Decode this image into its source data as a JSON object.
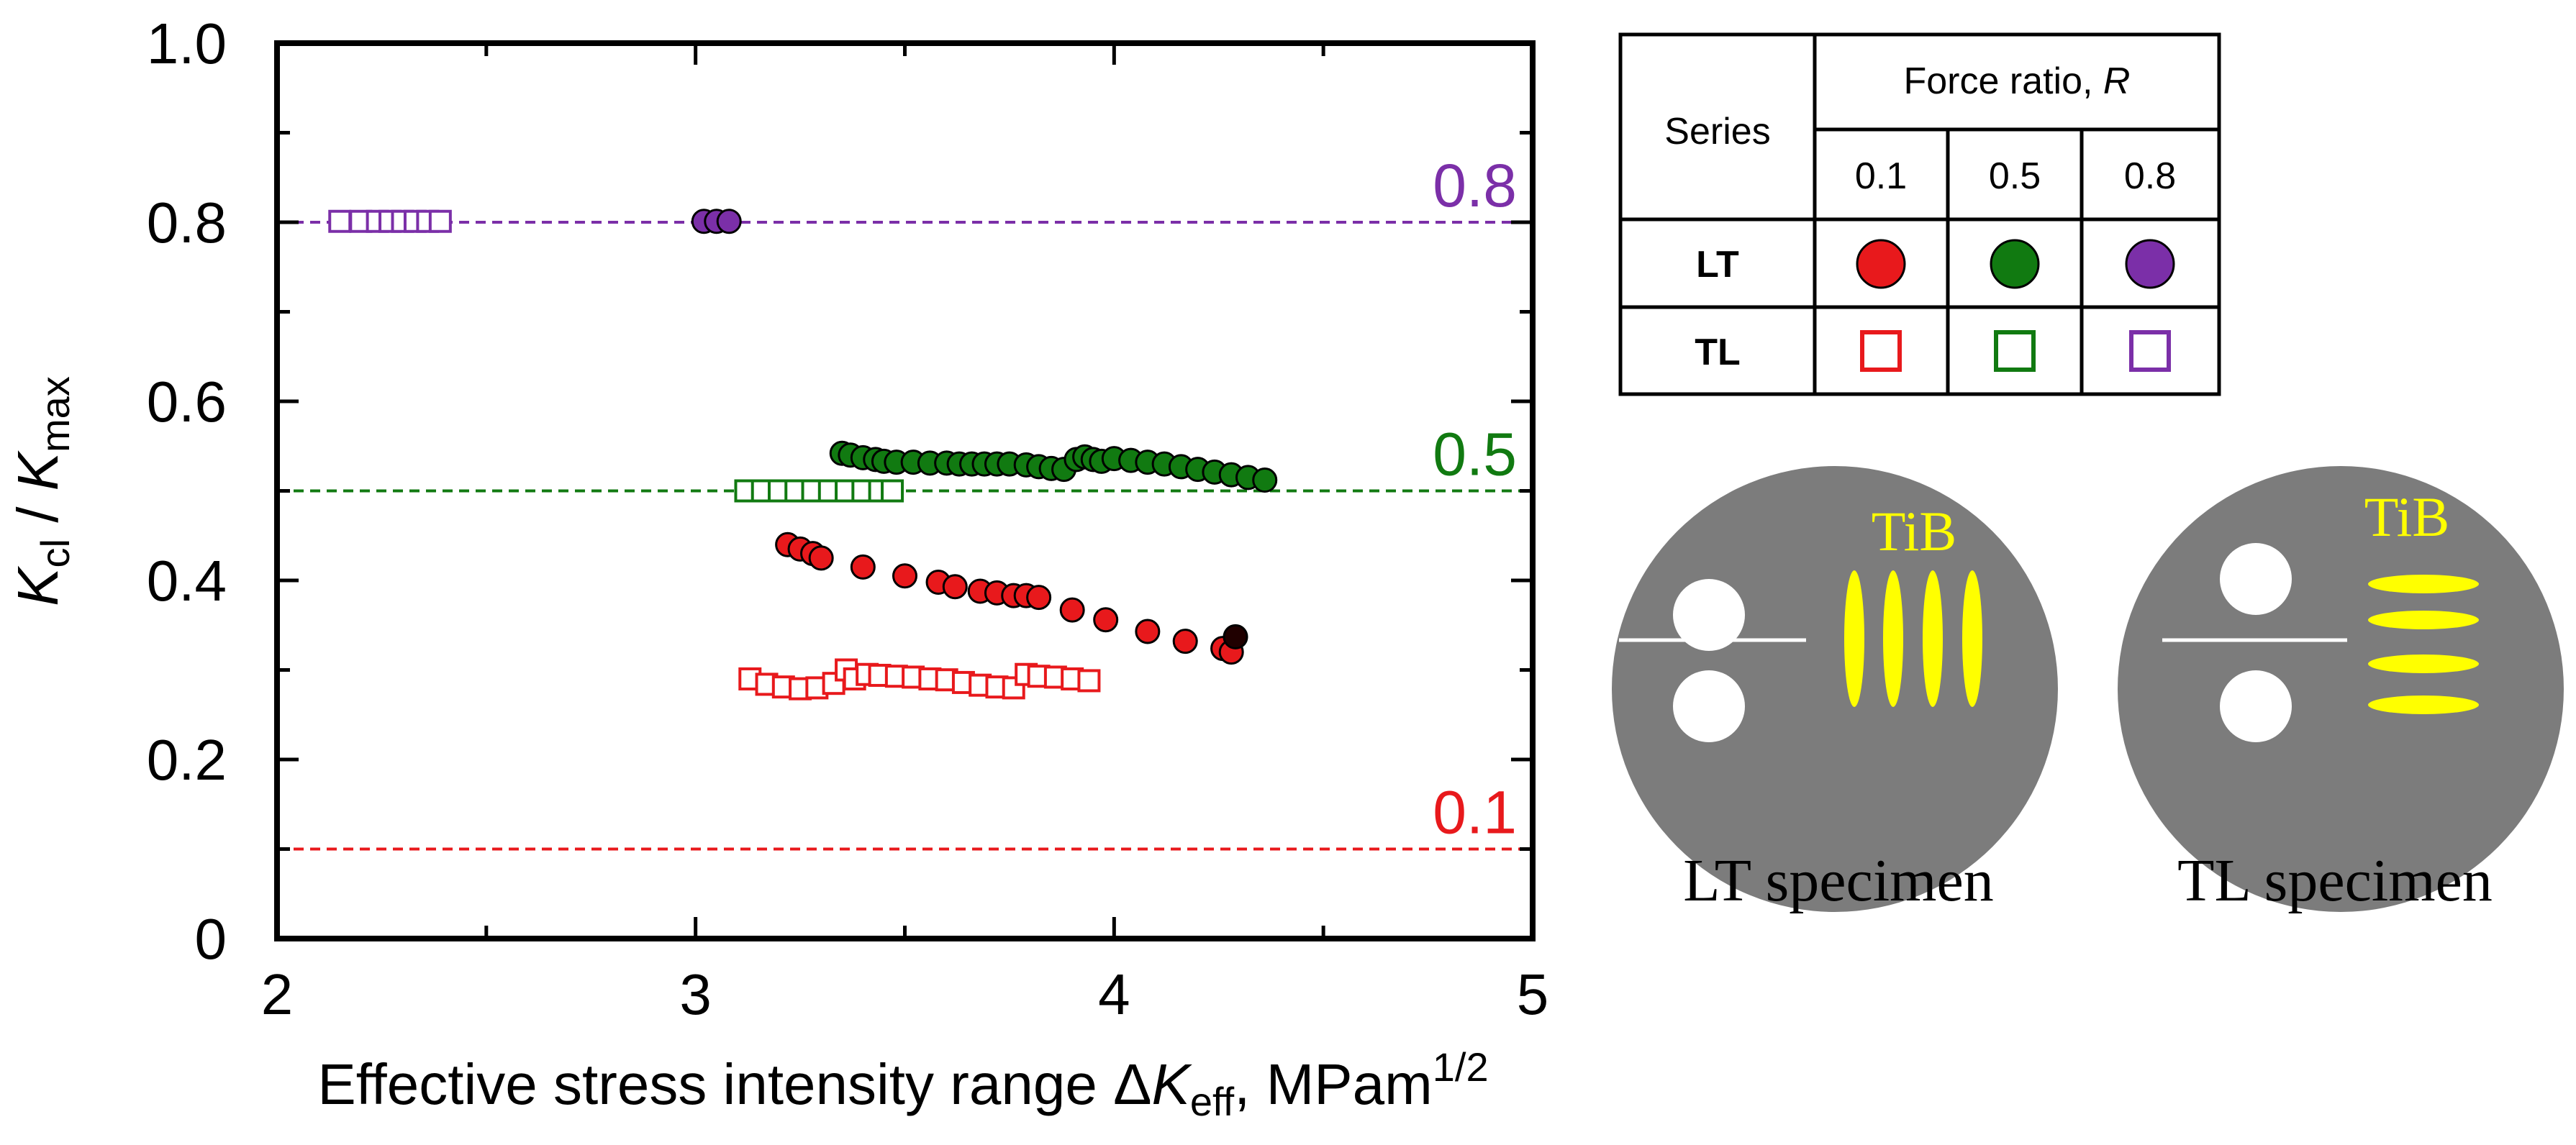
{
  "chart_data": {
    "type": "scatter",
    "xlabel_main": "Effective stress intensity range Δ",
    "xlabel_K": "K",
    "xlabel_sub": "eff",
    "xlabel_units": ", MPam",
    "xlabel_sup": "1/2",
    "ylabel_num": "K",
    "ylabel_num_sub": "cl",
    "ylabel_div": " / ",
    "ylabel_den": "K",
    "ylabel_den_sub": "max",
    "xlim": [
      2,
      5
    ],
    "ylim": [
      0,
      1.0
    ],
    "x_ticks": [
      2,
      3,
      4,
      5
    ],
    "x_tick_labels": [
      "2",
      "3",
      "4",
      "5"
    ],
    "y_ticks": [
      0,
      0.2,
      0.4,
      0.6,
      0.8,
      1.0
    ],
    "y_tick_labels": [
      "0",
      "0.2",
      "0.4",
      "0.6",
      "0.8",
      "1.0"
    ],
    "reference_lines": [
      {
        "y": 0.8,
        "label": "0.8",
        "color": "#7b2fa8"
      },
      {
        "y": 0.5,
        "label": "0.5",
        "color": "#117a11"
      },
      {
        "y": 0.1,
        "label": "0.1",
        "color": "#e8191c"
      }
    ],
    "series": [
      {
        "name": "LT R=0.1",
        "marker": "circle",
        "color": "#e8191c",
        "x": [
          3.22,
          3.25,
          3.28,
          3.3,
          3.4,
          3.5,
          3.58,
          3.62,
          3.68,
          3.72,
          3.76,
          3.79,
          3.82,
          3.9,
          3.98,
          4.08,
          4.17,
          4.26,
          4.28
        ],
        "y": [
          0.44,
          0.435,
          0.43,
          0.425,
          0.415,
          0.405,
          0.398,
          0.393,
          0.388,
          0.386,
          0.383,
          0.383,
          0.381,
          0.367,
          0.356,
          0.343,
          0.332,
          0.324,
          0.32
        ]
      },
      {
        "name": "LT R=0.1 (dark)",
        "marker": "circle",
        "color": "#200000",
        "x": [
          4.29
        ],
        "y": [
          0.337
        ]
      },
      {
        "name": "LT R=0.5",
        "marker": "circle",
        "color": "#117a11",
        "x": [
          3.35,
          3.37,
          3.4,
          3.43,
          3.45,
          3.48,
          3.52,
          3.56,
          3.6,
          3.63,
          3.66,
          3.69,
          3.72,
          3.75,
          3.79,
          3.82,
          3.85,
          3.88,
          3.91,
          3.93,
          3.95,
          3.97,
          4.0,
          4.04,
          4.08,
          4.12,
          4.16,
          4.2,
          4.24,
          4.28,
          4.32,
          4.36
        ],
        "y": [
          0.542,
          0.54,
          0.537,
          0.535,
          0.533,
          0.532,
          0.532,
          0.531,
          0.531,
          0.53,
          0.53,
          0.53,
          0.53,
          0.53,
          0.529,
          0.527,
          0.525,
          0.524,
          0.535,
          0.538,
          0.535,
          0.533,
          0.536,
          0.534,
          0.532,
          0.53,
          0.527,
          0.524,
          0.521,
          0.518,
          0.515,
          0.512
        ]
      },
      {
        "name": "LT R=0.8",
        "marker": "circle",
        "color": "#7b2fa8",
        "x": [
          3.02,
          3.05,
          3.08
        ],
        "y": [
          0.801,
          0.801,
          0.801
        ]
      },
      {
        "name": "TL R=0.1",
        "marker": "square",
        "color": "#e8191c",
        "x": [
          3.13,
          3.17,
          3.21,
          3.25,
          3.29,
          3.33,
          3.36,
          3.38,
          3.41,
          3.44,
          3.48,
          3.52,
          3.56,
          3.6,
          3.64,
          3.68,
          3.72,
          3.76,
          3.79,
          3.82,
          3.86,
          3.9,
          3.94
        ],
        "y": [
          0.29,
          0.284,
          0.281,
          0.279,
          0.28,
          0.285,
          0.3,
          0.29,
          0.295,
          0.294,
          0.293,
          0.292,
          0.29,
          0.289,
          0.286,
          0.283,
          0.281,
          0.28,
          0.295,
          0.293,
          0.292,
          0.29,
          0.288
        ]
      },
      {
        "name": "TL R=0.5",
        "marker": "square",
        "color": "#117a11",
        "x": [
          3.12,
          3.16,
          3.2,
          3.24,
          3.28,
          3.32,
          3.36,
          3.4,
          3.44,
          3.47
        ],
        "y": [
          0.5,
          0.5,
          0.5,
          0.5,
          0.5,
          0.5,
          0.5,
          0.5,
          0.5,
          0.5
        ]
      },
      {
        "name": "TL R=0.8",
        "marker": "square",
        "color": "#7b2fa8",
        "x": [
          2.15,
          2.2,
          2.24,
          2.27,
          2.3,
          2.33,
          2.36,
          2.39
        ],
        "y": [
          0.801,
          0.801,
          0.801,
          0.801,
          0.801,
          0.801,
          0.801,
          0.801
        ]
      }
    ]
  },
  "legend_table": {
    "series_header": "Series",
    "force_ratio_header": "Force ratio, ",
    "force_ratio_symbol": "R",
    "ratios": [
      "0.1",
      "0.5",
      "0.8"
    ],
    "rows": [
      {
        "label": "LT",
        "marker": "circle",
        "colors": [
          "#e8191c",
          "#117a11",
          "#7b2fa8"
        ]
      },
      {
        "label": "TL",
        "marker": "square",
        "colors": [
          "#e8191c",
          "#117a11",
          "#7b2fa8"
        ]
      }
    ]
  },
  "specimens": [
    {
      "caption": "LT specimen",
      "particle_label": "TiB",
      "orientation": "vertical"
    },
    {
      "caption": "TL specimen",
      "particle_label": "TiB",
      "orientation": "horizontal"
    }
  ],
  "colors": {
    "specimen_disk": "#7c7c7c",
    "particles": "#ffff00",
    "holes": "#ffffff"
  }
}
